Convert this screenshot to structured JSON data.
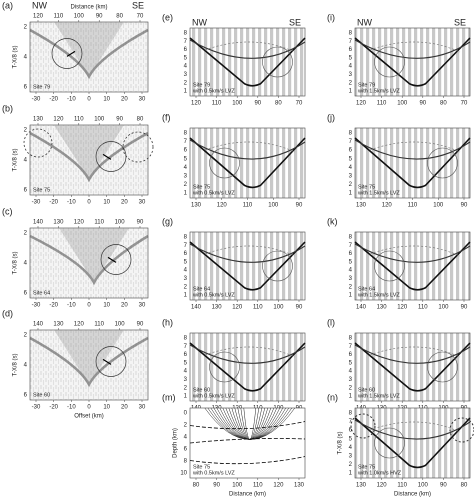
{
  "panels": [
    {
      "label": "(a)",
      "nw": "NW",
      "se": "SE",
      "distance_title": "Distance (km)",
      "distance_ticks": [
        "120",
        "110",
        "100",
        "90",
        "80",
        "70"
      ],
      "y_title": "T-X/8 (s)",
      "y_ticks": [
        "2",
        "4",
        "6"
      ],
      "x_ticks": [
        "-30",
        "-20",
        "-10",
        "0",
        "10",
        "20",
        "30"
      ],
      "site": [
        "Site 79"
      ]
    },
    {
      "label": "(b)",
      "distance_ticks": [
        "130",
        "120",
        "110",
        "100",
        "90",
        "80"
      ],
      "y_title": "T-X/8 (s)",
      "y_ticks": [
        "2",
        "4",
        "6"
      ],
      "x_ticks": [
        "-30",
        "-20",
        "-10",
        "0",
        "10",
        "20",
        "30"
      ],
      "site": [
        "Site 75"
      ]
    },
    {
      "label": "(c)",
      "distance_ticks": [
        "140",
        "130",
        "120",
        "110",
        "100",
        "90"
      ],
      "y_title": "T-X/8 (s)",
      "y_ticks": [
        "2",
        "4",
        "6"
      ],
      "x_ticks": [
        "-30",
        "-20",
        "-10",
        "0",
        "10",
        "20",
        "30"
      ],
      "site": [
        "Site 64"
      ]
    },
    {
      "label": "(d)",
      "distance_ticks": [
        "140",
        "130",
        "120",
        "110",
        "100",
        "90"
      ],
      "y_title": "T-X/8 (s)",
      "y_ticks": [
        "2",
        "4",
        "6"
      ],
      "x_ticks": [
        "-30",
        "-20",
        "-10",
        "0",
        "10",
        "20",
        "30"
      ],
      "x_title": "Offset (km)",
      "site": [
        "Site 60"
      ]
    },
    {
      "label": "(e)",
      "nw": "NW",
      "se": "SE",
      "y_ticks": [
        "8",
        "7",
        "6",
        "5",
        "4",
        "3",
        "2",
        "1"
      ],
      "x_ticks": [
        "120",
        "110",
        "100",
        "90",
        "80",
        "70"
      ],
      "site": [
        "Site 79",
        "with 0.5km/s LVZ"
      ]
    },
    {
      "label": "(f)",
      "y_ticks": [
        "8",
        "7",
        "6",
        "5",
        "4",
        "3",
        "2",
        "1"
      ],
      "x_ticks": [
        "130",
        "120",
        "110",
        "100",
        "90"
      ],
      "site": [
        "Site 75",
        "with 0.5km/s LVZ"
      ]
    },
    {
      "label": "(g)",
      "y_ticks": [
        "8",
        "7",
        "6",
        "5",
        "4",
        "3",
        "2",
        "1"
      ],
      "x_ticks": [
        "140",
        "130",
        "120",
        "110",
        "100",
        "90"
      ],
      "site": [
        "Site 64",
        "with 0.5km/s LVZ"
      ]
    },
    {
      "label": "(h)",
      "y_ticks": [
        "8",
        "7",
        "6",
        "5",
        "4",
        "3",
        "2",
        "1"
      ],
      "x_ticks": [
        "140",
        "130",
        "120",
        "110",
        "100",
        "90"
      ],
      "site": [
        "Site 60",
        "with 0.5km/s LVZ"
      ]
    },
    {
      "label": "(m)",
      "y_title": "Depth (km)",
      "y_ticks": [
        "0",
        "2",
        "4",
        "6",
        "8",
        "10"
      ],
      "x_ticks": [
        "80",
        "90",
        "100",
        "110",
        "120",
        "130"
      ],
      "x_title": "Distance (km)",
      "site": [
        "Site 75",
        "with 0.5km/s LVZ"
      ]
    },
    {
      "label": "(i)",
      "nw": "NW",
      "se": "SE",
      "y_ticks": [
        "8",
        "7",
        "6",
        "5",
        "4",
        "3",
        "2",
        "1"
      ],
      "x_ticks": [
        "120",
        "110",
        "100",
        "90",
        "80",
        "70"
      ],
      "site": [
        "Site 79",
        "with 1.5km/s LVZ"
      ]
    },
    {
      "label": "(j)",
      "y_ticks": [
        "8",
        "7",
        "6",
        "5",
        "4",
        "3",
        "2",
        "1"
      ],
      "x_ticks": [
        "130",
        "120",
        "110",
        "100",
        "90"
      ],
      "site": [
        "Site 75",
        "with 1.5km/s LVZ"
      ]
    },
    {
      "label": "(k)",
      "y_ticks": [
        "8",
        "7",
        "6",
        "5",
        "4",
        "3",
        "2",
        "1"
      ],
      "x_ticks": [
        "140",
        "130",
        "120",
        "110",
        "100",
        "90"
      ],
      "site": [
        "Site 64",
        "with 1.5km/s LVZ"
      ]
    },
    {
      "label": "(l)",
      "y_ticks": [
        "8",
        "7",
        "6",
        "5",
        "4",
        "3",
        "2",
        "1"
      ],
      "x_ticks": [
        "140",
        "130",
        "120",
        "110",
        "100",
        "90"
      ],
      "site": [
        "Site 60",
        "with 1.5km/s LVZ"
      ]
    },
    {
      "label": "(n)",
      "y_title": "T-X/8 (s)",
      "y_ticks": [
        "8",
        "7",
        "6",
        "5",
        "4",
        "3",
        "2",
        "1"
      ],
      "x_ticks": [
        "130",
        "120",
        "110",
        "100",
        "90",
        "80"
      ],
      "x_title": "Distance (km)",
      "site": [
        "Site 75",
        "with 1.0km/s HVZ"
      ]
    }
  ]
}
